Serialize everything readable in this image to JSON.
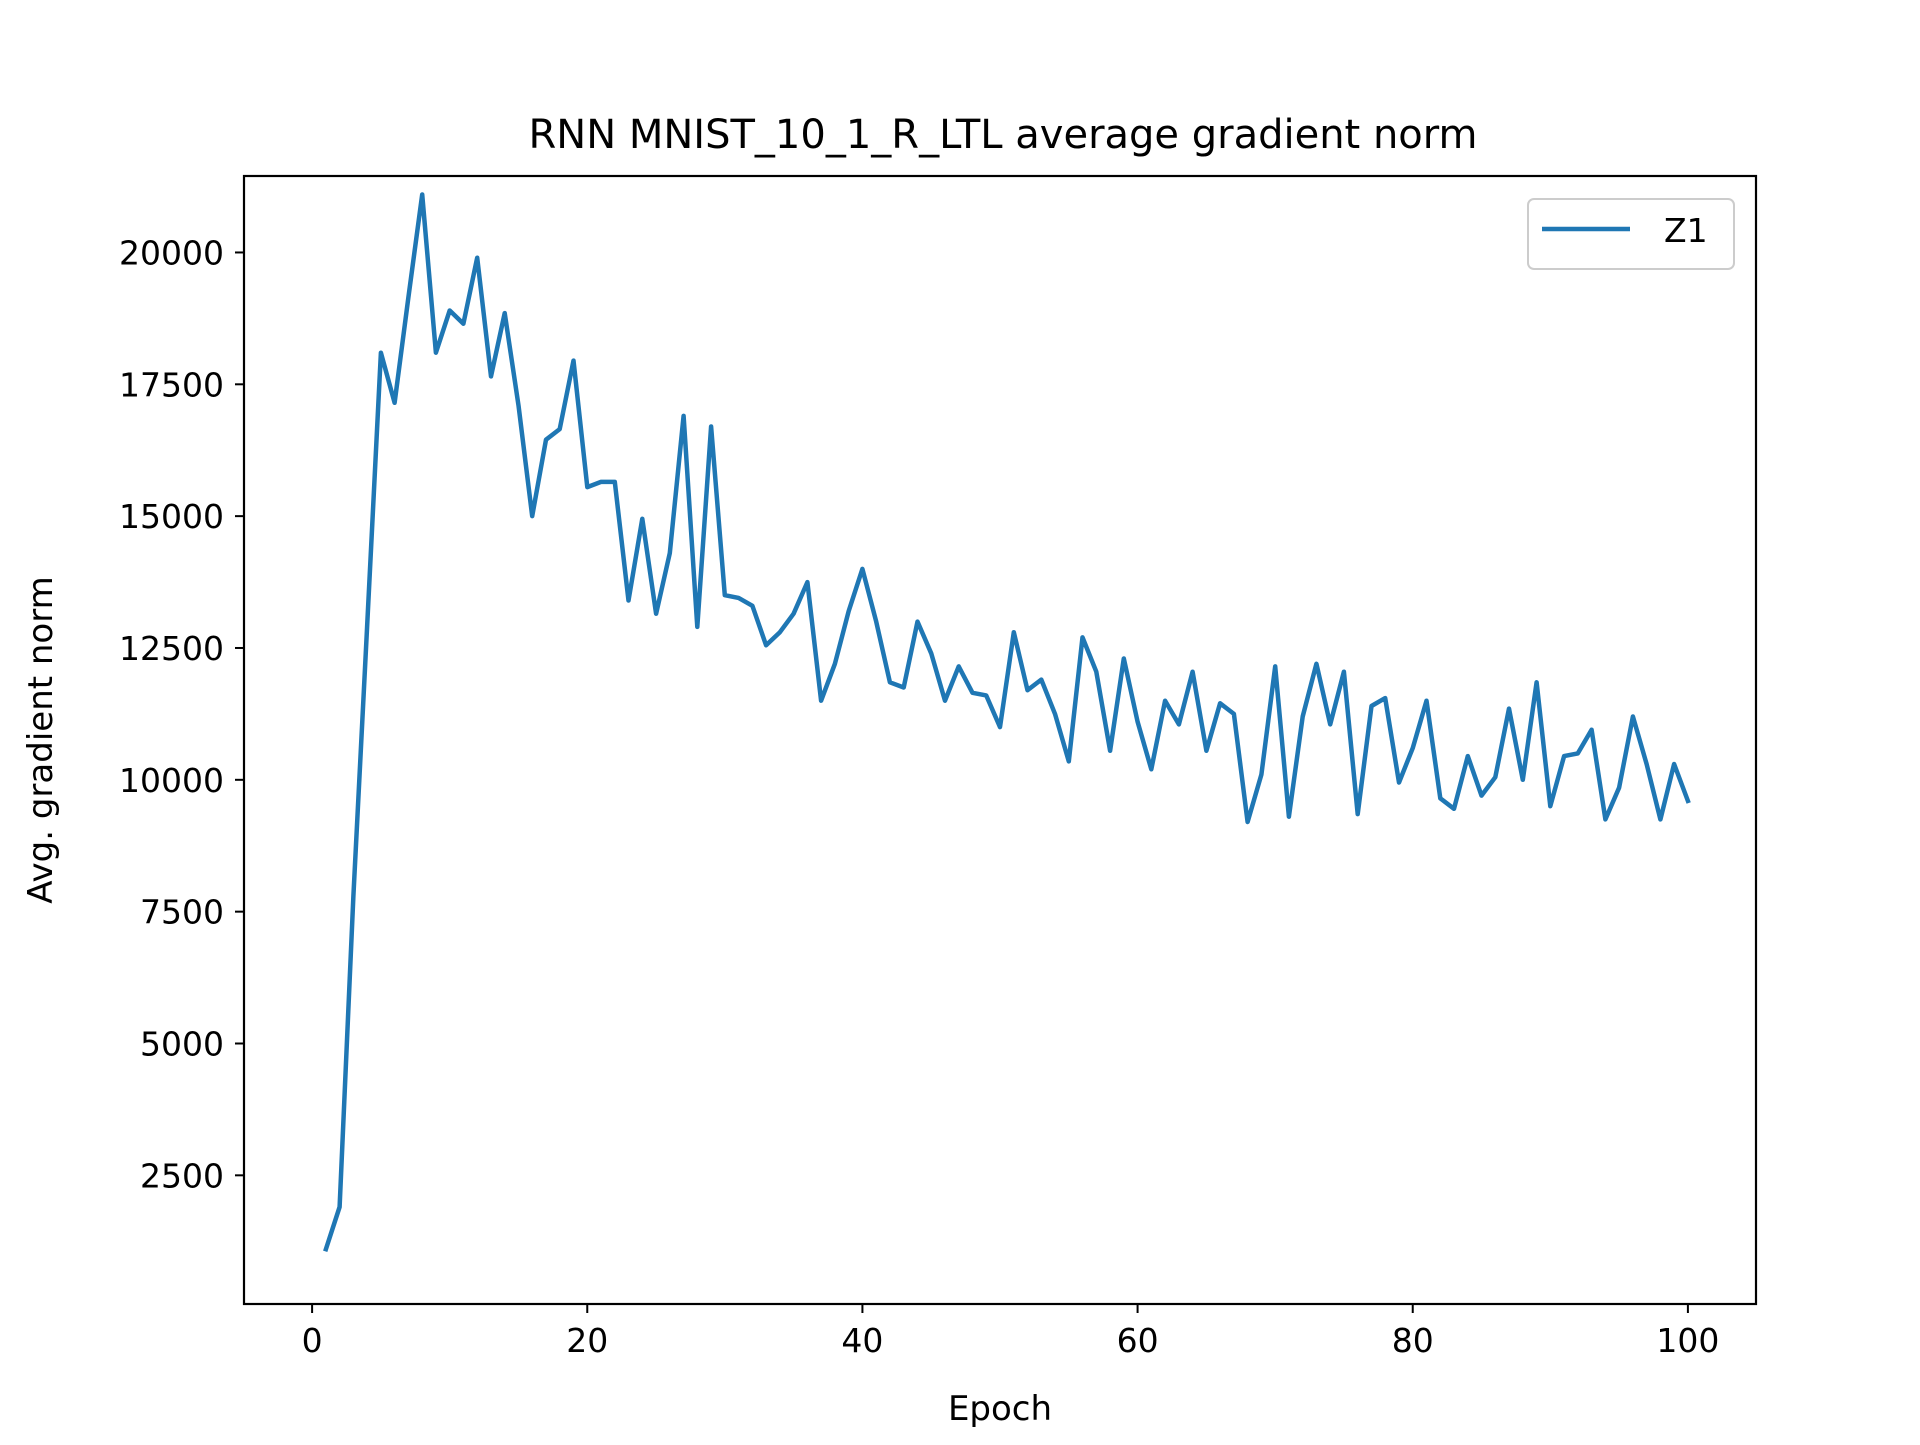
{
  "chart_data": {
    "type": "line",
    "title": "RNN MNIST_10_1_R_LTL average gradient norm",
    "xlabel": "Epoch",
    "ylabel": "Avg. gradient norm",
    "xlim": [
      -4.95,
      104.95
    ],
    "ylim": [
      60,
      21450
    ],
    "xticks": [
      0,
      20,
      40,
      60,
      80,
      100
    ],
    "yticks": [
      2500,
      5000,
      7500,
      10000,
      12500,
      15000,
      17500,
      20000
    ],
    "grid": false,
    "legend_position": "top-right",
    "series": [
      {
        "name": "Z1",
        "color": "#1f77b4",
        "x": [
          1,
          2,
          3,
          4,
          5,
          6,
          7,
          8,
          9,
          10,
          11,
          12,
          13,
          14,
          15,
          16,
          17,
          18,
          19,
          20,
          21,
          22,
          23,
          24,
          25,
          26,
          27,
          28,
          29,
          30,
          31,
          32,
          33,
          34,
          35,
          36,
          37,
          38,
          39,
          40,
          41,
          42,
          43,
          44,
          45,
          46,
          47,
          48,
          49,
          50,
          51,
          52,
          53,
          54,
          55,
          56,
          57,
          58,
          59,
          60,
          61,
          62,
          63,
          64,
          65,
          66,
          67,
          68,
          69,
          70,
          71,
          72,
          73,
          74,
          75,
          76,
          77,
          78,
          79,
          80,
          81,
          82,
          83,
          84,
          85,
          86,
          87,
          88,
          89,
          90,
          91,
          92,
          93,
          94,
          95,
          96,
          97,
          98,
          99,
          100
        ],
        "values": [
          1100,
          1900,
          7800,
          12900,
          18100,
          17150,
          19150,
          21100,
          18100,
          18900,
          18650,
          19900,
          17650,
          18850,
          17100,
          15000,
          16450,
          16650,
          17950,
          15550,
          15650,
          15650,
          13400,
          14950,
          13150,
          14300,
          16900,
          12900,
          16700,
          13500,
          13450,
          13300,
          12550,
          12800,
          13150,
          13750,
          11500,
          12200,
          13200,
          14000,
          13000,
          11850,
          11750,
          13000,
          12400,
          11500,
          12150,
          11650,
          11600,
          11000,
          12800,
          11700,
          11900,
          11250,
          10350,
          12700,
          12050,
          10550,
          12300,
          11100,
          10200,
          11500,
          11050,
          12050,
          10550,
          11450,
          11250,
          9200,
          10100,
          12150,
          9300,
          11200,
          12200,
          11050,
          12050,
          9350,
          11400,
          11550,
          9950,
          10600,
          11500,
          9650,
          9450,
          10450,
          9700,
          10050,
          11350,
          10000,
          11850,
          9500,
          10450,
          10500,
          10950,
          9250,
          9850,
          11200,
          10300,
          9250,
          10300,
          9600
        ]
      }
    ]
  }
}
